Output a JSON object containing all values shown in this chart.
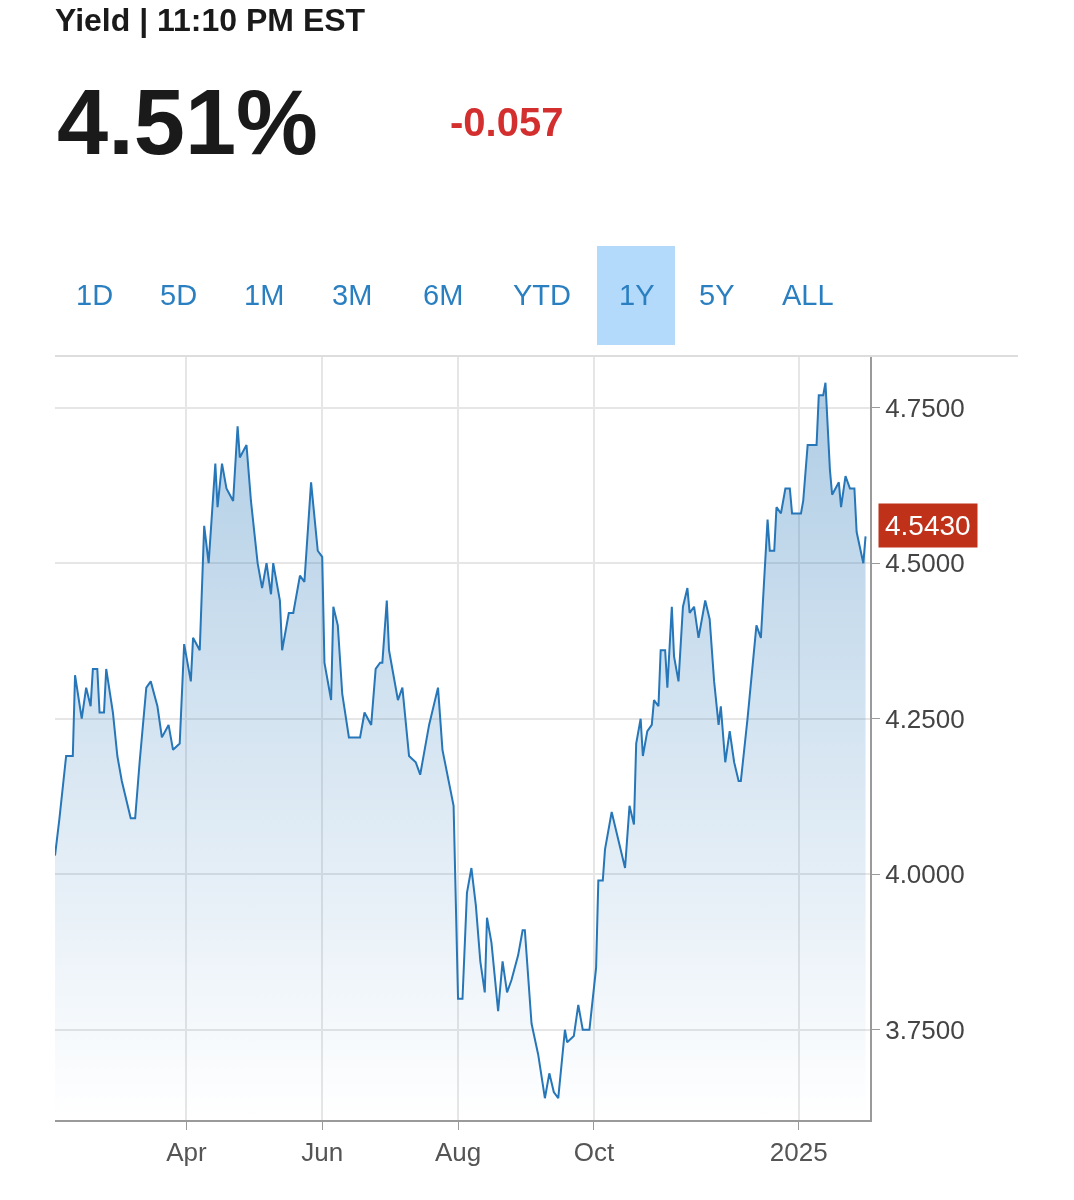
{
  "chart_data": {
    "type": "area",
    "title": "Yield | 11:10 PM EST",
    "annotations": [
      "4.51%",
      "-0.057",
      "1D",
      "5D",
      "1M",
      "3M",
      "6M",
      "YTD",
      "1Y",
      "5Y",
      "ALL",
      {
        "text": "4.5430",
        "x": "2025-01-31",
        "y": 4.543
      }
    ],
    "x": [
      "2024-02-02",
      "2024-02-04",
      "2024-02-07",
      "2024-02-10",
      "2024-02-11",
      "2024-02-14",
      "2024-02-16",
      "2024-02-18",
      "2024-02-19",
      "2024-02-21",
      "2024-02-22",
      "2024-02-24",
      "2024-02-25",
      "2024-02-28",
      "2024-03-01",
      "2024-03-03",
      "2024-03-07",
      "2024-03-09",
      "2024-03-11",
      "2024-03-14",
      "2024-03-16",
      "2024-03-19",
      "2024-03-21",
      "2024-03-24",
      "2024-03-26",
      "2024-03-29",
      "2024-03-31",
      "2024-04-03",
      "2024-04-04",
      "2024-04-07",
      "2024-04-09",
      "2024-04-11",
      "2024-04-14",
      "2024-04-15",
      "2024-04-17",
      "2024-04-19",
      "2024-04-22",
      "2024-04-24",
      "2024-04-25",
      "2024-04-28",
      "2024-04-30",
      "2024-05-03",
      "2024-05-05",
      "2024-05-07",
      "2024-05-09",
      "2024-05-10",
      "2024-05-13",
      "2024-05-14",
      "2024-05-17",
      "2024-05-19",
      "2024-05-22",
      "2024-05-24",
      "2024-05-27",
      "2024-05-30",
      "2024-06-01",
      "2024-06-02",
      "2024-06-05",
      "2024-06-06",
      "2024-06-08",
      "2024-06-10",
      "2024-06-13",
      "2024-06-18",
      "2024-06-20",
      "2024-06-23",
      "2024-06-25",
      "2024-06-27",
      "2024-06-28",
      "2024-06-30",
      "2024-07-01",
      "2024-07-05",
      "2024-07-07",
      "2024-07-10",
      "2024-07-13",
      "2024-07-15",
      "2024-07-19",
      "2024-07-23",
      "2024-07-25",
      "2024-07-30",
      "2024-08-01",
      "2024-08-03",
      "2024-08-05",
      "2024-08-07",
      "2024-08-09",
      "2024-08-11",
      "2024-08-13",
      "2024-08-14",
      "2024-08-16",
      "2024-08-19",
      "2024-08-21",
      "2024-08-23",
      "2024-08-25",
      "2024-08-28",
      "2024-08-30",
      "2024-08-31",
      "2024-09-03",
      "2024-09-06",
      "2024-09-09",
      "2024-09-11",
      "2024-09-13",
      "2024-09-15",
      "2024-09-18",
      "2024-09-19",
      "2024-09-22",
      "2024-09-24",
      "2024-09-26",
      "2024-09-29",
      "2024-10-02",
      "2024-10-03",
      "2024-10-05",
      "2024-10-06",
      "2024-10-09",
      "2024-10-11",
      "2024-10-15",
      "2024-10-17",
      "2024-10-19",
      "2024-10-20",
      "2024-10-22",
      "2024-10-23",
      "2024-10-25",
      "2024-10-27",
      "2024-10-28",
      "2024-10-30",
      "2024-10-31",
      "2024-11-02",
      "2024-11-03",
      "2024-11-05",
      "2024-11-06",
      "2024-11-08",
      "2024-11-10",
      "2024-11-12",
      "2024-11-13",
      "2024-11-15",
      "2024-11-17",
      "2024-11-20",
      "2024-11-22",
      "2024-11-24",
      "2024-11-26",
      "2024-11-27",
      "2024-11-29",
      "2024-12-01",
      "2024-12-03",
      "2024-12-05",
      "2024-12-06",
      "2024-12-09",
      "2024-12-13",
      "2024-12-15",
      "2024-12-18",
      "2024-12-19",
      "2024-12-21",
      "2024-12-22",
      "2024-12-24",
      "2024-12-26",
      "2024-12-28",
      "2024-12-29",
      "2025-01-02",
      "2025-01-03",
      "2025-01-05",
      "2025-01-07",
      "2025-01-09",
      "2025-01-10",
      "2025-01-12",
      "2025-01-13",
      "2025-01-15",
      "2025-01-16",
      "2025-01-19",
      "2025-01-20",
      "2025-01-22",
      "2025-01-24",
      "2025-01-26",
      "2025-01-27",
      "2025-01-30",
      "2025-01-31"
    ],
    "series": [
      {
        "color": "#2676b8",
        "values": [
          4.03,
          4.09,
          4.19,
          4.19,
          4.32,
          4.25,
          4.3,
          4.27,
          4.33,
          4.33,
          4.26,
          4.26,
          4.33,
          4.26,
          4.19,
          4.15,
          4.09,
          4.09,
          4.18,
          4.3,
          4.31,
          4.27,
          4.22,
          4.24,
          4.2,
          4.21,
          4.37,
          4.31,
          4.38,
          4.36,
          4.56,
          4.5,
          4.66,
          4.59,
          4.66,
          4.62,
          4.6,
          4.72,
          4.67,
          4.69,
          4.6,
          4.5,
          4.46,
          4.5,
          4.45,
          4.5,
          4.44,
          4.36,
          4.42,
          4.42,
          4.48,
          4.47,
          4.63,
          4.52,
          4.51,
          4.34,
          4.28,
          4.43,
          4.4,
          4.29,
          4.22,
          4.22,
          4.26,
          4.24,
          4.33,
          4.34,
          4.34,
          4.44,
          4.36,
          4.28,
          4.3,
          4.19,
          4.18,
          4.16,
          4.24,
          4.3,
          4.2,
          4.11,
          3.8,
          3.8,
          3.97,
          4.01,
          3.95,
          3.86,
          3.81,
          3.93,
          3.89,
          3.78,
          3.86,
          3.81,
          3.83,
          3.87,
          3.91,
          3.91,
          3.76,
          3.71,
          3.64,
          3.68,
          3.65,
          3.64,
          3.75,
          3.73,
          3.74,
          3.79,
          3.75,
          3.75,
          3.85,
          3.99,
          3.99,
          4.04,
          4.1,
          4.07,
          4.01,
          4.11,
          4.08,
          4.21,
          4.25,
          4.19,
          4.23,
          4.24,
          4.28,
          4.27,
          4.36,
          4.36,
          4.3,
          4.43,
          4.35,
          4.31,
          4.43,
          4.46,
          4.42,
          4.43,
          4.38,
          4.44,
          4.41,
          4.31,
          4.24,
          4.27,
          4.18,
          4.23,
          4.18,
          4.15,
          4.15,
          4.25,
          4.4,
          4.38,
          4.57,
          4.52,
          4.52,
          4.59,
          4.58,
          4.62,
          4.62,
          4.58,
          4.58,
          4.6,
          4.69,
          4.69,
          4.69,
          4.77,
          4.77,
          4.79,
          4.65,
          4.61,
          4.63,
          4.59,
          4.64,
          4.62,
          4.62,
          4.55,
          4.5,
          4.543
        ]
      }
    ],
    "xlim": [
      "2024-02-02",
      "2025-02-02"
    ],
    "xticks": [
      {
        "value": "2024-04-01",
        "label": "Apr"
      },
      {
        "value": "2024-06-01",
        "label": "Jun"
      },
      {
        "value": "2024-08-01",
        "label": "Aug"
      },
      {
        "value": "2024-10-01",
        "label": "Oct"
      },
      {
        "value": "2025-01-01",
        "label": "2025"
      }
    ],
    "ylim": [
      3.605,
      4.833
    ],
    "yticks": [
      {
        "value": 3.75,
        "label": "3.7500"
      },
      {
        "value": 4.0,
        "label": "4.0000"
      },
      {
        "value": 4.25,
        "label": "4.2500"
      },
      {
        "value": 4.5,
        "label": "4.5000"
      },
      {
        "value": 4.75,
        "label": "4.7500"
      }
    ],
    "grid": true,
    "marker": "none",
    "line_style": "solid"
  }
}
